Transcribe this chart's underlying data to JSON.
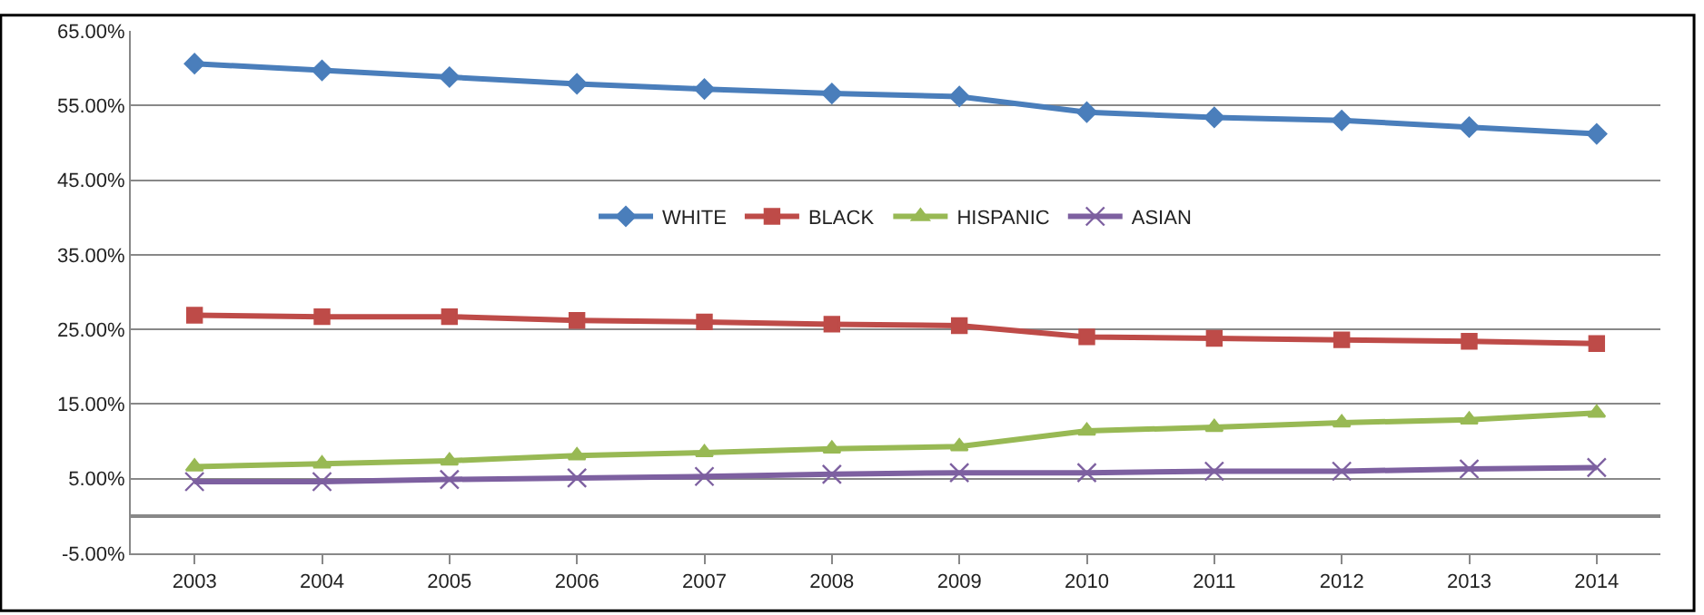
{
  "chart_data": {
    "type": "line",
    "categories": [
      "2003",
      "2004",
      "2005",
      "2006",
      "2007",
      "2008",
      "2009",
      "2010",
      "2011",
      "2012",
      "2013",
      "2014"
    ],
    "series": [
      {
        "name": "WHITE",
        "color": "#4a7ebb",
        "marker": "diamond",
        "values": [
          60.6,
          59.7,
          58.8,
          57.9,
          57.2,
          56.6,
          56.2,
          54.1,
          53.4,
          53.0,
          52.1,
          51.2
        ]
      },
      {
        "name": "BLACK",
        "color": "#be4b48",
        "marker": "square",
        "values": [
          26.9,
          26.7,
          26.7,
          26.2,
          26.0,
          25.7,
          25.5,
          24.0,
          23.8,
          23.6,
          23.4,
          23.1
        ]
      },
      {
        "name": "HISPANIC",
        "color": "#98b954",
        "marker": "triangle",
        "values": [
          6.6,
          7.0,
          7.4,
          8.1,
          8.5,
          9.0,
          9.3,
          11.4,
          11.9,
          12.5,
          12.9,
          13.8
        ]
      },
      {
        "name": "ASIAN",
        "color": "#7d60a0",
        "marker": "cross",
        "values": [
          4.6,
          4.6,
          4.9,
          5.1,
          5.3,
          5.6,
          5.8,
          5.8,
          6.0,
          6.0,
          6.3,
          6.5
        ]
      }
    ],
    "ylim": [
      -5,
      65
    ],
    "yticks": [
      {
        "value": -5,
        "label": "-5.00%"
      },
      {
        "value": 5,
        "label": "5.00%"
      },
      {
        "value": 15,
        "label": "15.00%"
      },
      {
        "value": 25,
        "label": "25.00%"
      },
      {
        "value": 35,
        "label": "35.00%"
      },
      {
        "value": 45,
        "label": "45.00%"
      },
      {
        "value": 55,
        "label": "55.00%"
      },
      {
        "value": 65,
        "label": "65.00%"
      }
    ],
    "grid": "y",
    "legend": "center",
    "line_style": "solid"
  }
}
